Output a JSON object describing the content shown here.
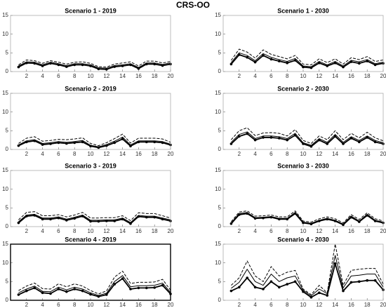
{
  "title": "CRS-OO",
  "chart_data": [
    {
      "type": "line",
      "title": "Scenario 1 - 2019",
      "box_color": "#a0a0a0",
      "x": [
        1,
        2,
        3,
        4,
        5,
        6,
        7,
        8,
        9,
        10,
        11,
        12,
        13,
        14,
        15,
        16,
        17,
        18,
        19,
        20
      ],
      "xlim": [
        0,
        20
      ],
      "ylim": [
        0,
        15
      ],
      "xticks": [
        2,
        4,
        6,
        8,
        10,
        12,
        14,
        16,
        18,
        20
      ],
      "yticks": [
        0,
        5,
        10,
        15
      ],
      "series": [
        {
          "color": "#000000",
          "style": "marker",
          "values": [
            1.2,
            2.3,
            2.2,
            1.5,
            2.2,
            1.8,
            1.3,
            1.8,
            1.8,
            1.5,
            0.7,
            0.6,
            1.3,
            1.5,
            1.8,
            0.8,
            2.0,
            2.0,
            1.6,
            2.0
          ]
        },
        {
          "color": "#000000",
          "style": "solid",
          "values": [
            1.5,
            2.6,
            2.5,
            1.8,
            2.5,
            2.1,
            1.6,
            2.1,
            2.1,
            1.8,
            1.0,
            0.9,
            1.6,
            1.8,
            2.1,
            1.1,
            2.3,
            2.3,
            1.9,
            2.3
          ]
        },
        {
          "color": "#000000",
          "style": "dashed",
          "values": [
            1.8,
            3.1,
            2.9,
            2.2,
            2.9,
            2.5,
            2.0,
            2.5,
            2.6,
            2.2,
            1.3,
            1.2,
            2.0,
            2.3,
            2.6,
            1.5,
            2.8,
            2.8,
            2.3,
            2.7
          ]
        }
      ]
    },
    {
      "type": "line",
      "title": "Scenario 1 - 2030",
      "box_color": "#a0a0a0",
      "x": [
        1,
        2,
        3,
        4,
        5,
        6,
        7,
        8,
        9,
        10,
        11,
        12,
        13,
        14,
        15,
        16,
        17,
        18,
        19,
        20
      ],
      "xlim": [
        0,
        20
      ],
      "ylim": [
        0,
        15
      ],
      "xticks": [
        2,
        4,
        6,
        8,
        10,
        12,
        14,
        16,
        18,
        20
      ],
      "yticks": [
        0,
        5,
        10,
        15
      ],
      "series": [
        {
          "color": "#000000",
          "style": "marker",
          "values": [
            2.0,
            4.5,
            3.8,
            2.5,
            4.3,
            3.3,
            2.8,
            2.3,
            3.0,
            1.2,
            1.0,
            2.3,
            1.5,
            2.3,
            1.2,
            2.6,
            2.2,
            2.8,
            1.8,
            2.2
          ]
        },
        {
          "color": "#000000",
          "style": "solid",
          "values": [
            2.4,
            5.0,
            4.3,
            2.9,
            4.8,
            3.8,
            3.2,
            2.7,
            3.5,
            1.5,
            1.3,
            2.7,
            1.8,
            2.7,
            1.5,
            3.0,
            2.6,
            3.2,
            2.1,
            2.5
          ]
        },
        {
          "color": "#000000",
          "style": "dashed",
          "values": [
            3.0,
            6.0,
            5.2,
            3.6,
            5.8,
            4.6,
            4.0,
            3.4,
            4.3,
            2.0,
            1.8,
            3.4,
            2.4,
            3.4,
            2.0,
            3.7,
            3.2,
            4.0,
            2.7,
            3.1
          ]
        }
      ]
    },
    {
      "type": "line",
      "title": "Scenario 2 - 2019",
      "box_color": "#a0a0a0",
      "x": [
        1,
        2,
        3,
        4,
        5,
        6,
        7,
        8,
        9,
        10,
        11,
        12,
        13,
        14,
        15,
        16,
        17,
        18,
        19,
        20
      ],
      "xlim": [
        0,
        20
      ],
      "ylim": [
        0,
        15
      ],
      "xticks": [
        2,
        4,
        6,
        8,
        10,
        12,
        14,
        16,
        18,
        20
      ],
      "yticks": [
        0,
        5,
        10,
        15
      ],
      "series": [
        {
          "color": "#000000",
          "style": "marker",
          "values": [
            1.0,
            2.0,
            2.3,
            1.3,
            1.5,
            1.8,
            1.6,
            1.8,
            2.0,
            0.9,
            0.5,
            1.0,
            1.8,
            2.8,
            0.9,
            2.0,
            2.0,
            2.0,
            1.8,
            1.2
          ]
        },
        {
          "color": "#000000",
          "style": "solid",
          "values": [
            1.2,
            2.3,
            2.6,
            1.6,
            1.8,
            2.1,
            1.9,
            2.1,
            2.4,
            1.1,
            0.7,
            1.3,
            2.2,
            3.3,
            1.2,
            2.3,
            2.3,
            2.3,
            2.1,
            1.4
          ]
        },
        {
          "color": "#000000",
          "style": "dashed",
          "values": [
            1.6,
            3.0,
            3.4,
            2.2,
            2.4,
            2.7,
            2.6,
            2.8,
            3.1,
            1.6,
            1.0,
            1.8,
            2.9,
            4.1,
            1.7,
            3.0,
            3.0,
            3.0,
            2.8,
            1.9
          ]
        }
      ]
    },
    {
      "type": "line",
      "title": "Scenario 2 - 2030",
      "box_color": "#a0a0a0",
      "x": [
        1,
        2,
        3,
        4,
        5,
        6,
        7,
        8,
        9,
        10,
        11,
        12,
        13,
        14,
        15,
        16,
        17,
        18,
        19,
        20
      ],
      "xlim": [
        0,
        20
      ],
      "ylim": [
        0,
        15
      ],
      "xticks": [
        2,
        4,
        6,
        8,
        10,
        12,
        14,
        16,
        18,
        20
      ],
      "yticks": [
        0,
        5,
        10,
        15
      ],
      "series": [
        {
          "color": "#000000",
          "style": "marker",
          "values": [
            1.5,
            3.5,
            4.2,
            2.5,
            3.2,
            3.2,
            3.0,
            2.5,
            3.8,
            1.5,
            0.8,
            2.5,
            1.5,
            3.5,
            1.5,
            3.0,
            2.0,
            3.2,
            2.0,
            1.5
          ]
        },
        {
          "color": "#000000",
          "style": "solid",
          "values": [
            1.9,
            4.0,
            4.7,
            2.9,
            3.6,
            3.6,
            3.4,
            2.9,
            4.3,
            1.8,
            1.1,
            2.9,
            1.9,
            4.0,
            1.9,
            3.4,
            2.4,
            3.6,
            2.4,
            1.8
          ]
        },
        {
          "color": "#000000",
          "style": "dashed",
          "values": [
            2.6,
            5.0,
            5.8,
            3.7,
            4.4,
            4.5,
            4.3,
            3.6,
            5.3,
            2.4,
            1.6,
            3.6,
            2.6,
            5.0,
            2.6,
            4.3,
            3.1,
            4.6,
            3.1,
            2.3
          ]
        }
      ]
    },
    {
      "type": "line",
      "title": "Scenario 3 - 2019",
      "box_color": "#a0a0a0",
      "x": [
        1,
        2,
        3,
        4,
        5,
        6,
        7,
        8,
        9,
        10,
        11,
        12,
        13,
        14,
        15,
        16,
        17,
        18,
        19,
        20
      ],
      "xlim": [
        0,
        20
      ],
      "ylim": [
        0,
        15
      ],
      "xticks": [
        2,
        4,
        6,
        8,
        10,
        12,
        14,
        16,
        18,
        20
      ],
      "yticks": [
        0,
        5,
        10,
        15
      ],
      "series": [
        {
          "color": "#000000",
          "style": "marker",
          "values": [
            1.0,
            2.8,
            3.0,
            2.0,
            2.0,
            2.3,
            1.7,
            2.2,
            2.8,
            1.4,
            1.4,
            1.5,
            1.5,
            2.0,
            0.8,
            2.7,
            2.5,
            2.5,
            2.0,
            1.5
          ]
        },
        {
          "color": "#000000",
          "style": "solid",
          "values": [
            1.3,
            3.1,
            3.3,
            2.3,
            2.3,
            2.6,
            2.0,
            2.5,
            3.1,
            1.7,
            1.7,
            1.8,
            1.8,
            2.3,
            1.1,
            3.0,
            2.8,
            2.8,
            2.3,
            1.8
          ]
        },
        {
          "color": "#000000",
          "style": "dashed",
          "values": [
            1.8,
            3.8,
            4.0,
            2.9,
            2.9,
            3.2,
            2.6,
            3.1,
            3.8,
            2.3,
            2.3,
            2.4,
            2.4,
            2.9,
            1.6,
            3.7,
            3.5,
            3.5,
            2.9,
            2.3
          ]
        }
      ]
    },
    {
      "type": "line",
      "title": "Scenario 3 - 2030",
      "box_color": "#a0a0a0",
      "x": [
        1,
        2,
        3,
        4,
        5,
        6,
        7,
        8,
        9,
        10,
        11,
        12,
        13,
        14,
        15,
        16,
        17,
        18,
        19,
        20
      ],
      "xlim": [
        0,
        20
      ],
      "ylim": [
        0,
        15
      ],
      "xticks": [
        2,
        4,
        6,
        8,
        10,
        12,
        14,
        16,
        18,
        20
      ],
      "yticks": [
        0,
        5,
        10,
        15
      ],
      "series": [
        {
          "color": "#000000",
          "style": "marker",
          "values": [
            0.8,
            3.2,
            3.5,
            2.2,
            2.3,
            2.5,
            2.0,
            2.0,
            3.5,
            1.0,
            0.7,
            1.5,
            2.0,
            1.5,
            0.5,
            2.5,
            1.3,
            3.0,
            1.5,
            1.0
          ]
        },
        {
          "color": "#000000",
          "style": "solid",
          "values": [
            1.0,
            3.5,
            3.8,
            2.4,
            2.5,
            2.7,
            2.2,
            2.2,
            3.8,
            1.2,
            0.9,
            1.7,
            2.2,
            1.7,
            0.7,
            2.8,
            1.5,
            3.3,
            1.7,
            1.2
          ]
        },
        {
          "color": "#000000",
          "style": "dashed",
          "values": [
            1.3,
            3.9,
            4.2,
            2.8,
            2.9,
            3.1,
            2.6,
            2.6,
            4.2,
            1.5,
            1.2,
            2.1,
            2.6,
            2.1,
            1.0,
            3.2,
            1.9,
            3.7,
            2.1,
            1.5
          ]
        }
      ]
    },
    {
      "type": "line",
      "title": "Scenario 4 - 2019",
      "box_color": "#000000",
      "x": [
        1,
        2,
        3,
        4,
        5,
        6,
        7,
        8,
        9,
        10,
        11,
        12,
        13,
        14,
        15,
        16,
        17,
        18,
        19,
        20
      ],
      "xlim": [
        0,
        20
      ],
      "ylim": [
        0,
        15
      ],
      "xticks": [
        2,
        4,
        6,
        8,
        10,
        12,
        14,
        16,
        18,
        20
      ],
      "yticks": [
        0,
        5,
        10,
        15
      ],
      "series": [
        {
          "color": "#000000",
          "style": "marker",
          "values": [
            1.5,
            2.5,
            3.3,
            2.0,
            1.8,
            3.0,
            2.3,
            3.0,
            2.5,
            1.6,
            1.0,
            1.5,
            4.3,
            5.8,
            3.0,
            3.3,
            3.3,
            3.4,
            4.0,
            1.7
          ]
        },
        {
          "color": "#000000",
          "style": "solid",
          "values": [
            2.0,
            3.0,
            3.8,
            2.4,
            2.3,
            3.5,
            2.8,
            3.5,
            3.0,
            2.0,
            1.3,
            1.9,
            5.0,
            6.6,
            3.6,
            3.9,
            3.9,
            4.0,
            4.6,
            2.1
          ]
        },
        {
          "color": "#000000",
          "style": "dashed",
          "values": [
            2.6,
            3.8,
            4.6,
            3.1,
            3.0,
            4.4,
            3.6,
            4.4,
            3.8,
            2.6,
            1.7,
            2.5,
            6.2,
            7.8,
            4.5,
            4.8,
            4.8,
            4.9,
            5.6,
            2.7
          ]
        }
      ]
    },
    {
      "type": "line",
      "title": "Scenario 4 - 2030",
      "box_color": "#a0a0a0",
      "x": [
        1,
        2,
        3,
        4,
        5,
        6,
        7,
        8,
        9,
        10,
        11,
        12,
        13,
        14,
        15,
        16,
        17,
        18,
        19,
        20
      ],
      "xlim": [
        0,
        20
      ],
      "ylim": [
        0,
        15
      ],
      "xticks": [
        2,
        4,
        6,
        8,
        10,
        12,
        14,
        16,
        18,
        20
      ],
      "yticks": [
        0,
        5,
        10,
        15
      ],
      "series": [
        {
          "color": "#000000",
          "style": "marker",
          "values": [
            2.5,
            3.5,
            6.0,
            3.5,
            3.0,
            5.0,
            3.5,
            4.3,
            5.0,
            2.3,
            0.8,
            2.0,
            1.3,
            9.8,
            2.5,
            4.8,
            5.0,
            5.3,
            5.3,
            2.8
          ]
        },
        {
          "color": "#000000",
          "style": "solid",
          "values": [
            3.2,
            4.8,
            8.3,
            5.0,
            4.0,
            7.0,
            5.0,
            6.0,
            6.5,
            2.7,
            1.2,
            3.0,
            1.8,
            12.0,
            3.3,
            6.5,
            6.7,
            7.0,
            7.0,
            3.5
          ]
        },
        {
          "color": "#000000",
          "style": "dashed",
          "values": [
            4.0,
            6.0,
            10.5,
            6.5,
            5.0,
            9.0,
            6.5,
            7.5,
            8.0,
            3.0,
            1.5,
            4.0,
            2.0,
            15.0,
            4.0,
            8.0,
            8.3,
            8.5,
            8.5,
            4.3
          ]
        }
      ]
    }
  ]
}
